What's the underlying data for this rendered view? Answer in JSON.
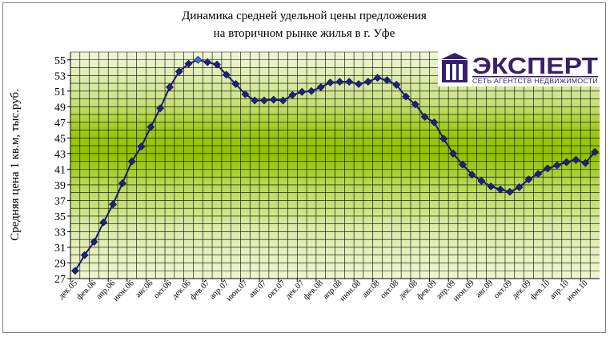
{
  "chart_data": {
    "type": "line",
    "title": [
      "Динамика средней удельной цены предложения",
      "на вторичном рынке жилья в г. Уфе"
    ],
    "ylabel": "Средняя цена 1 кв.м, тыс.руб.",
    "xlabel": "",
    "ylim": [
      27,
      56
    ],
    "yticks": [
      27,
      29,
      31,
      33,
      35,
      37,
      39,
      41,
      43,
      45,
      47,
      49,
      51,
      53,
      55
    ],
    "grid": true,
    "legend": "none",
    "tick_labels": [
      "дек.05",
      "фев.06",
      "апр.06",
      "июн.06",
      "авг.06",
      "окт.06",
      "дек.06",
      "фев.07",
      "апр.07",
      "июн.07",
      "авг.07",
      "окт.07",
      "дек.07",
      "фев.08",
      "апр.08",
      "июн.08",
      "авг.08",
      "окт.08",
      "дек.08",
      "фев.09",
      "апр.09",
      "июн.09",
      "авг.09",
      "окт.09",
      "дек.09",
      "фев.10",
      "апр.10",
      "июн.10"
    ],
    "x": [
      "дек.05",
      "янв.06",
      "фев.06",
      "мар.06",
      "апр.06",
      "май.06",
      "июн.06",
      "июл.06",
      "авг.06",
      "сен.06",
      "окт.06",
      "ноя.06",
      "дек.06",
      "янв.07",
      "фев.07",
      "мар.07",
      "апр.07",
      "май.07",
      "июн.07",
      "июл.07",
      "авг.07",
      "сен.07",
      "окт.07",
      "ноя.07",
      "дек.07",
      "янв.08",
      "фев.08",
      "мар.08",
      "апр.08",
      "май.08",
      "июн.08",
      "июл.08",
      "авг.08",
      "сен.08",
      "окт.08",
      "ноя.08",
      "дек.08",
      "янв.09",
      "фев.09",
      "мар.09",
      "апр.09",
      "май.09",
      "июн.09",
      "июл.09",
      "авг.09",
      "сен.09",
      "окт.09",
      "ноя.09",
      "дек.09",
      "янв.10",
      "фев.10",
      "мар.10",
      "апр.10",
      "май.10",
      "июн.10",
      "июл.10"
    ],
    "values": [
      28.0,
      30.0,
      31.7,
      34.2,
      36.5,
      39.2,
      42.0,
      43.9,
      46.4,
      48.8,
      51.5,
      53.5,
      54.5,
      55.0,
      54.7,
      54.4,
      53.1,
      51.9,
      50.6,
      49.8,
      49.8,
      49.9,
      49.8,
      50.5,
      50.9,
      51.0,
      51.5,
      52.1,
      52.2,
      52.2,
      51.9,
      52.2,
      52.7,
      52.4,
      51.8,
      50.3,
      49.3,
      47.7,
      47.0,
      44.9,
      43.0,
      41.6,
      40.3,
      39.5,
      38.8,
      38.4,
      38.1,
      38.7,
      39.7,
      40.4,
      41.1,
      41.5,
      41.9,
      42.2,
      41.8,
      43.2
    ]
  },
  "logo": {
    "name": "ЭКСПЕРТ",
    "tagline": "СЕТЬ АГЕНТСТВ НЕДВИЖИМОСТИ",
    "colors": {
      "primary": "#37206b",
      "background": "#ffffff"
    }
  },
  "colors": {
    "line": "#1a1a6e",
    "marker": "#1a237e",
    "highlight_marker": "#3b6fd6",
    "band_light": "#eaf3c6",
    "band_dark": "#92c400",
    "grid": "#000000"
  }
}
